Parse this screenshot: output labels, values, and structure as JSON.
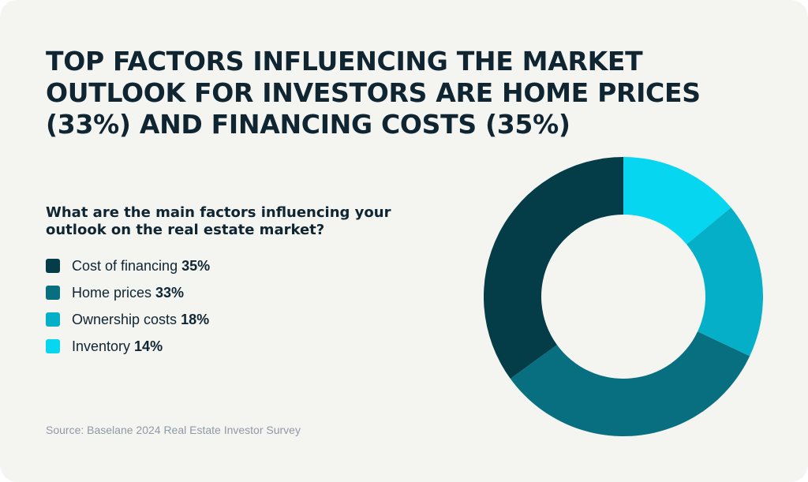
{
  "title": "TOP FACTORS INFLUENCING THE MARKET OUTLOOK FOR INVESTORS ARE HOME PRICES (33%) AND FINANCING COSTS (35%)",
  "question": "What are the main factors influencing your outlook on the real estate market?",
  "source": "Source: Baselane 2024 Real Estate Investor Survey",
  "colors": {
    "background": "#f4f4f1",
    "text": "#0f2532",
    "source_text": "#8e9aa6"
  },
  "chart_data": {
    "type": "pie",
    "subtype": "donut",
    "title": "",
    "categories": [
      "Cost of financing",
      "Home prices",
      "Ownership costs",
      "Inventory"
    ],
    "values": [
      35,
      33,
      18,
      14
    ],
    "value_labels": [
      "35%",
      "33%",
      "18%",
      "14%"
    ],
    "colors": [
      "#043c47",
      "#076f80",
      "#05afc8",
      "#06d6f0"
    ],
    "legend_position": "left"
  }
}
